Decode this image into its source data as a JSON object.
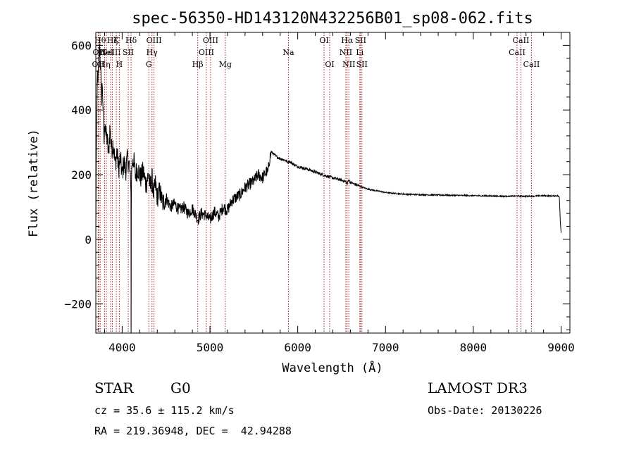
{
  "chart_data": {
    "type": "line",
    "title": "spec-56350-HD143120N432256B01_sp08-062.fits",
    "xlabel": "Wavelength (Å)",
    "ylabel": "Flux (relative)",
    "xlim": [
      3700,
      9100
    ],
    "ylim": [
      -290,
      640
    ],
    "xticks": [
      4000,
      5000,
      6000,
      7000,
      8000,
      9000
    ],
    "yticks": [
      -200,
      0,
      200,
      400,
      600
    ],
    "series": [
      {
        "color": "#000000",
        "x": [
          3700,
          3705,
          3712,
          3718,
          3725,
          3735,
          3745,
          3755,
          3765,
          3775,
          3785,
          3795,
          3805,
          3815,
          3830,
          3845,
          3860,
          3880,
          3900,
          3920,
          3940,
          3960,
          3980,
          4000,
          4020,
          4040,
          4060,
          4080,
          4090,
          4100,
          4102,
          4104,
          4110,
          4130,
          4150,
          4180,
          4210,
          4240,
          4270,
          4300,
          4320,
          4340,
          4360,
          4380,
          4400,
          4430,
          4460,
          4500,
          4550,
          4600,
          4650,
          4700,
          4750,
          4800,
          4850,
          4861,
          4900,
          4950,
          5000,
          5050,
          5100,
          5150,
          5200,
          5250,
          5300,
          5350,
          5400,
          5450,
          5500,
          5550,
          5600,
          5640,
          5660,
          5680,
          5700,
          5720,
          5760,
          5800,
          5850,
          5890,
          5900,
          5950,
          6000,
          6100,
          6200,
          6300,
          6400,
          6500,
          6550,
          6563,
          6580,
          6600,
          6700,
          6800,
          6900,
          7000,
          7100,
          7200,
          7400,
          7600,
          7800,
          8000,
          8200,
          8400,
          8500,
          8600,
          8700,
          8800,
          8900,
          8960,
          8980,
          8990,
          9000
        ],
        "y": [
          0,
          220,
          380,
          520,
          470,
          560,
          600,
          520,
          440,
          480,
          380,
          300,
          380,
          320,
          310,
          260,
          340,
          280,
          300,
          230,
          270,
          220,
          250,
          200,
          240,
          210,
          250,
          230,
          200,
          140,
          -290,
          120,
          230,
          250,
          200,
          220,
          190,
          210,
          170,
          200,
          160,
          190,
          140,
          170,
          130,
          150,
          110,
          130,
          100,
          110,
          90,
          100,
          80,
          95,
          70,
          60,
          80,
          75,
          60,
          85,
          70,
          100,
          90,
          120,
          130,
          140,
          160,
          170,
          180,
          200,
          190,
          210,
          205,
          250,
          270,
          265,
          255,
          250,
          245,
          238,
          242,
          232,
          225,
          218,
          208,
          198,
          190,
          183,
          178,
          170,
          185,
          176,
          165,
          155,
          150,
          145,
          142,
          140,
          138,
          137,
          136,
          135,
          134,
          133,
          134,
          133,
          134,
          135,
          134,
          135,
          130,
          60,
          20
        ]
      }
    ],
    "lines": [
      {
        "x": 3727,
        "label": "OII",
        "row": 2
      },
      {
        "x": 3735,
        "label": "OII",
        "row": 1
      },
      {
        "x": 3750,
        "label": "Hθ",
        "row": 0
      },
      {
        "x": 3800,
        "label": "Hη",
        "row": 2
      },
      {
        "x": 3820,
        "label": "HeI",
        "row": 1
      },
      {
        "x": 3869,
        "label": "NeIII",
        "row": 1
      },
      {
        "x": 3889,
        "label": "Hζ",
        "row": 0
      },
      {
        "x": 3934,
        "label": "K",
        "row": 0
      },
      {
        "x": 3968,
        "label": "H",
        "row": 2
      },
      {
        "x": 4070,
        "label": "SII",
        "row": 1
      },
      {
        "x": 4102,
        "label": "Hδ",
        "row": 0
      },
      {
        "x": 4304,
        "label": "G",
        "row": 2
      },
      {
        "x": 4340,
        "label": "Hγ",
        "row": 1
      },
      {
        "x": 4363,
        "label": "OIII",
        "row": 0
      },
      {
        "x": 4861,
        "label": "Hβ",
        "row": 2
      },
      {
        "x": 4959,
        "label": "OIII",
        "row": 1
      },
      {
        "x": 5007,
        "label": "OIII",
        "row": 0
      },
      {
        "x": 5175,
        "label": "Mg",
        "row": 2
      },
      {
        "x": 5894,
        "label": "Na",
        "row": 1
      },
      {
        "x": 6300,
        "label": "OI",
        "row": 0
      },
      {
        "x": 6364,
        "label": "OI",
        "row": 2
      },
      {
        "x": 6548,
        "label": "NII",
        "row": 1
      },
      {
        "x": 6563,
        "label": "Hα",
        "row": 0
      },
      {
        "x": 6583,
        "label": "NII",
        "row": 2
      },
      {
        "x": 6707,
        "label": "Li",
        "row": 1
      },
      {
        "x": 6716,
        "label": "SII",
        "row": 0
      },
      {
        "x": 6731,
        "label": "SII",
        "row": 2
      },
      {
        "x": 8498,
        "label": "CaII",
        "row": 1
      },
      {
        "x": 8542,
        "label": "CaII",
        "row": 0
      },
      {
        "x": 8662,
        "label": "CaII",
        "row": 2
      }
    ],
    "grid": false,
    "line_color": "#b22222"
  },
  "info": {
    "class": "STAR",
    "subclass": "G0",
    "survey": "LAMOST DR3",
    "cz": "cz = 35.6 ± 115.2 km/s",
    "obs_date": "Obs-Date: 20130226",
    "radec": "RA = 219.36948, DEC =  42.94288"
  }
}
